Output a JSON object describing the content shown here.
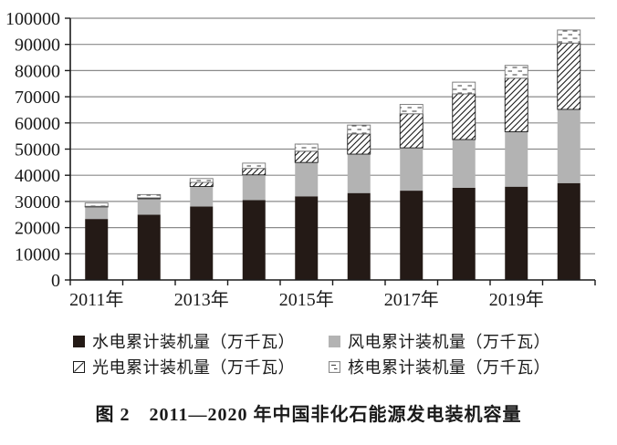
{
  "figure": {
    "caption": "图 2　2011—2020 年中国非化石能源发电装机容量"
  },
  "colors": {
    "hydro": "#241a16",
    "wind": "#b3b3b3",
    "hatch_line": "#1a1a1a",
    "dash_line": "#4a4a4a",
    "nuclear_border": "#777777",
    "solar_border": "#1a1a1a",
    "grid": "#8a8a8a",
    "axis": "#1a1a1a",
    "text": "#1a1a1a"
  },
  "chart_data": {
    "type": "bar",
    "stacked": true,
    "title": "图 2　2011—2020 年中国非化石能源发电装机容量",
    "xlabel": "",
    "ylabel": "",
    "unit": "万千瓦",
    "categories": [
      "2011年",
      "2012年",
      "2013年",
      "2014年",
      "2015年",
      "2016年",
      "2017年",
      "2018年",
      "2019年",
      "2020年"
    ],
    "x_axis_labels_shown": [
      "2011年",
      "2013年",
      "2015年",
      "2017年",
      "2019年"
    ],
    "series": [
      {
        "name": "水电累计装机量（万千瓦）",
        "pattern": "solid-dark",
        "values": [
          23298,
          24947,
          28044,
          30486,
          31954,
          33211,
          34119,
          35226,
          35640,
          37016
        ]
      },
      {
        "name": "风电累计装机量（万千瓦）",
        "pattern": "solid-gray",
        "values": [
          4623,
          6083,
          7652,
          9657,
          12934,
          14864,
          16367,
          18426,
          21005,
          28153
        ]
      },
      {
        "name": "光电累计装机量（万千瓦）",
        "pattern": "diagonal-hatch",
        "values": [
          222,
          341,
          1589,
          2486,
          4318,
          7742,
          13025,
          17463,
          20468,
          25343
        ]
      },
      {
        "name": "核电累计装机量（万千瓦）",
        "pattern": "dash-dots",
        "values": [
          1257,
          1257,
          1466,
          2008,
          2717,
          3364,
          3582,
          4466,
          4874,
          4989
        ]
      }
    ],
    "ylim": [
      0,
      100000
    ],
    "y_ticks": [
      0,
      10000,
      20000,
      30000,
      40000,
      50000,
      60000,
      70000,
      80000,
      90000,
      100000
    ],
    "grid": "horizontal",
    "legend_position": "bottom"
  }
}
